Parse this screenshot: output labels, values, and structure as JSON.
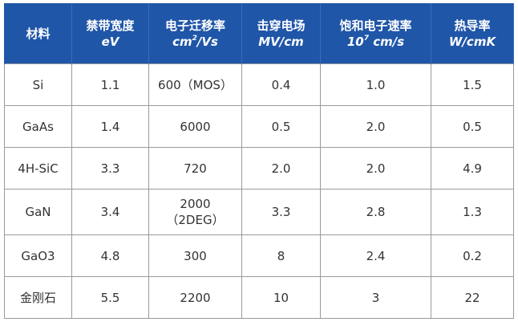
{
  "table": {
    "headers": [
      {
        "main": "材料",
        "unit": ""
      },
      {
        "main": "禁带宽度",
        "unit": "eV"
      },
      {
        "main": "电子迁移率",
        "unit_pre": "cm",
        "unit_sup": "2",
        "unit_post": "/Vs"
      },
      {
        "main": "击穿电场",
        "unit": "MV/cm"
      },
      {
        "main": "饱和电子速率",
        "unit_pre": "10",
        "unit_sup": "7",
        "unit_post": " cm/s"
      },
      {
        "main": "热导率",
        "unit": "W/cmK"
      }
    ],
    "rows": [
      [
        "Si",
        "1.1",
        "600（MOS）",
        "0.4",
        "1.0",
        "1.5"
      ],
      [
        "GaAs",
        "1.4",
        "6000",
        "0.5",
        "2.0",
        "0.5"
      ],
      [
        "4H-SiC",
        "3.3",
        "720",
        "2.0",
        "2.0",
        "4.9"
      ],
      [
        "GaN",
        "3.4",
        "2000",
        "3.3",
        "2.8",
        "1.3"
      ],
      [
        "GaO3",
        "4.8",
        "300",
        "8",
        "2.4",
        "0.2"
      ],
      [
        "金刚石",
        "5.5",
        "2200",
        "10",
        "3",
        "22"
      ]
    ],
    "gan_mobility_note": "（2DEG）"
  },
  "colors": {
    "header_bg": "#1f56a8",
    "header_text": "#ffffff",
    "border": "#9a9a9a",
    "cell_text": "#333333"
  }
}
